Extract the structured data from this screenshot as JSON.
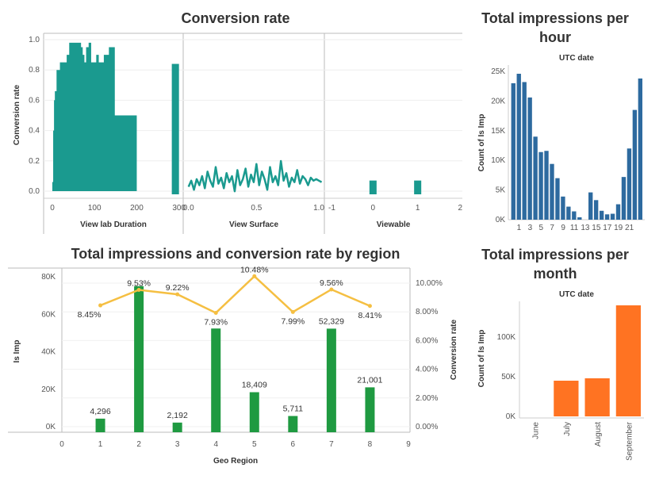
{
  "colors": {
    "teal": "#1a9a8f",
    "blue": "#2d6a9f",
    "green": "#1f9a41",
    "yellow": "#f5bf42",
    "orange": "#ff7322"
  },
  "chart_data": [
    {
      "id": "conversion",
      "type": "area",
      "title": "Conversion rate",
      "ylabel": "Conversion rate",
      "ylim": [
        0,
        1.05
      ],
      "yticks": [
        "1.0",
        "0.8",
        "0.6",
        "0.4",
        "0.2",
        "0.0"
      ],
      "panels": [
        {
          "xlabel": "View lab Duration",
          "xlim": [
            -15,
            310
          ],
          "xticks": [
            "0",
            "100",
            "200",
            "300"
          ],
          "segments": [
            {
              "type": "area",
              "x": [
                0,
                2,
                4,
                6,
                8,
                10,
                14,
                18,
                22,
                26,
                30,
                34,
                40,
                46,
                50,
                56,
                62,
                68,
                72,
                76,
                80,
                86,
                92,
                98,
                104,
                110,
                116,
                122,
                128,
                134,
                140,
                144,
                148,
                152,
                160,
                170,
                180,
                195,
                200
              ],
              "y": [
                0.06,
                0.4,
                0.6,
                0.66,
                0.66,
                0.8,
                0.8,
                0.85,
                0.85,
                0.85,
                0.85,
                0.9,
                0.98,
                0.98,
                0.98,
                0.98,
                0.98,
                0.95,
                0.9,
                0.85,
                0.95,
                0.98,
                0.85,
                0.85,
                0.9,
                0.85,
                0.85,
                0.9,
                0.9,
                0.95,
                0.95,
                0.95,
                0.5,
                0.5,
                0.5,
                0.5,
                0.5,
                0.5,
                0.5
              ]
            },
            {
              "type": "bar",
              "x0": 283,
              "x1": 300,
              "y": 0.84
            }
          ]
        },
        {
          "xlabel": "View Surface",
          "xlim": [
            -0.01,
            1.0
          ],
          "xticks": [
            "0.0",
            "0.5",
            "1.0"
          ],
          "segments": [
            {
              "type": "line",
              "x": [
                0.0,
                0.02,
                0.04,
                0.06,
                0.08,
                0.1,
                0.12,
                0.14,
                0.16,
                0.18,
                0.2,
                0.22,
                0.24,
                0.26,
                0.28,
                0.3,
                0.32,
                0.34,
                0.36,
                0.38,
                0.4,
                0.42,
                0.44,
                0.46,
                0.48,
                0.5,
                0.52,
                0.54,
                0.56,
                0.58,
                0.6,
                0.62,
                0.64,
                0.66,
                0.68,
                0.7,
                0.72,
                0.74,
                0.76,
                0.78,
                0.8,
                0.82,
                0.84,
                0.86,
                0.88,
                0.9,
                0.92,
                0.94,
                0.96,
                0.98
              ],
              "y": [
                0.05,
                0.09,
                0.03,
                0.1,
                0.06,
                0.12,
                0.04,
                0.15,
                0.09,
                0.05,
                0.18,
                0.07,
                0.11,
                0.04,
                0.14,
                0.08,
                0.12,
                0.02,
                0.16,
                0.06,
                0.1,
                0.17,
                0.05,
                0.13,
                0.08,
                0.2,
                0.06,
                0.15,
                0.1,
                0.03,
                0.18,
                0.08,
                0.12,
                0.06,
                0.22,
                0.09,
                0.14,
                0.05,
                0.11,
                0.08,
                0.16,
                0.07,
                0.12,
                0.1,
                0.06,
                0.11,
                0.09,
                0.1,
                0.09,
                0.08
              ]
            }
          ]
        },
        {
          "xlabel": "Viewable",
          "xlim": [
            -1,
            2
          ],
          "xticks": [
            "-1",
            "0",
            "1",
            "2"
          ],
          "segments": [
            {
              "type": "bar",
              "x0": -0.08,
              "x1": 0.08,
              "y": 0.07
            },
            {
              "type": "bar",
              "x0": 0.92,
              "x1": 1.08,
              "y": 0.07
            }
          ]
        }
      ]
    },
    {
      "id": "hourly",
      "type": "bar",
      "title": "Total impressions per hour",
      "title_lines": [
        "Total impressions per",
        "hour"
      ],
      "subtitle": "UTC date",
      "ylabel": "Count of Is Imp",
      "ylim": [
        0,
        26000
      ],
      "yticks": [
        "25K",
        "20K",
        "15K",
        "10K",
        "5K",
        "0K"
      ],
      "xticks": [
        "1",
        "3",
        "5",
        "7",
        "9",
        "11",
        "13",
        "15",
        "17",
        "19",
        "21"
      ],
      "categories": [
        "0",
        "1",
        "2",
        "3",
        "4",
        "5",
        "6",
        "7",
        "8",
        "9",
        "10",
        "11",
        "12",
        "13",
        "14",
        "15",
        "16",
        "17",
        "18",
        "19",
        "20",
        "21",
        "22",
        "23"
      ],
      "values": [
        23000,
        24600,
        23200,
        20600,
        14000,
        11400,
        11600,
        9400,
        7000,
        3900,
        2200,
        1400,
        400,
        0,
        4600,
        3300,
        1500,
        900,
        1000,
        2600,
        7200,
        12000,
        18500,
        23800
      ]
    },
    {
      "id": "region",
      "type": "bar",
      "title": "Total impressions and conversion rate by region",
      "xlabel": "Geo Region",
      "ylabel": "Is Imp",
      "y2label": "Conversion rate",
      "ylim": [
        0,
        80000
      ],
      "y2lim": [
        0,
        0.11
      ],
      "xlim": [
        0,
        9
      ],
      "yticks": [
        "80K",
        "60K",
        "40K",
        "20K",
        "0K"
      ],
      "y2ticks": [
        "10.00%",
        "8.00%",
        "6.00%",
        "4.00%",
        "2.00%",
        "0.00%"
      ],
      "xticks": [
        "0",
        "1",
        "2",
        "3",
        "4",
        "5",
        "6",
        "7",
        "8",
        "9"
      ],
      "categories": [
        "1",
        "2",
        "3",
        "4",
        "5",
        "6",
        "7",
        "8"
      ],
      "values": [
        4296,
        75000,
        2192,
        52400,
        18409,
        5711,
        52329,
        21001
      ],
      "value_labels": [
        "4,296",
        "",
        "2,192",
        "",
        "18,409",
        "5,711",
        "52,329",
        "21,001"
      ],
      "rate": [
        0.0845,
        0.0953,
        0.0922,
        0.0793,
        0.1048,
        0.0799,
        0.0956,
        0.0841
      ],
      "rate_labels": [
        "8.45%",
        "9.53%",
        "9.22%",
        "7.93%",
        "10.48%",
        "7.99%",
        "9.56%",
        "8.41%"
      ]
    },
    {
      "id": "monthly",
      "type": "bar",
      "title": "Total impressions per month",
      "title_lines": [
        "Total impressions per",
        "month"
      ],
      "subtitle": "UTC date",
      "ylabel": "Count of Is Imp",
      "ylim": [
        0,
        145000
      ],
      "yticks": [
        "100K",
        "50K",
        "0K"
      ],
      "categories": [
        "June",
        "July",
        "August",
        "September"
      ],
      "values": [
        0,
        45000,
        48000,
        140000
      ]
    }
  ]
}
